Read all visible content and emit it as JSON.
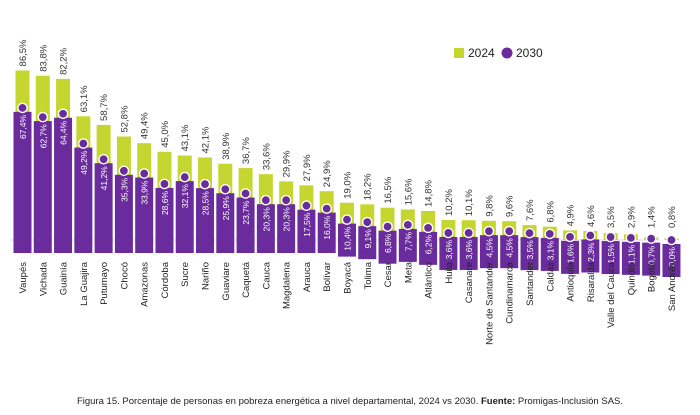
{
  "chart_data": {
    "type": "bar",
    "title": "",
    "xlabel": "",
    "ylabel": "",
    "ylim": [
      0,
      100
    ],
    "categories": [
      "Vaupés",
      "Vichada",
      "Guainía",
      "La Guajira",
      "Putumayo",
      "Chocó",
      "Amazonas",
      "Córdoba",
      "Sucre",
      "Nariño",
      "Guaviare",
      "Caquetá",
      "Cauca",
      "Magdalena",
      "Arauca",
      "Bolívar",
      "Boyacá",
      "Tolima",
      "Cesar",
      "Meta",
      "Atlántico",
      "Huila",
      "Casanare",
      "Norte de Santander",
      "Cundinamarca",
      "Santander",
      "Caldas",
      "Antioquia",
      "Risaralda",
      "Valle del Cauca",
      "Quindío",
      "Bogotá",
      "San Andrés"
    ],
    "series": [
      {
        "name": "2024",
        "color": "#c6d631",
        "values": [
          86.5,
          83.8,
          82.2,
          63.1,
          58.7,
          52.8,
          49.4,
          45.0,
          43.1,
          42.1,
          38.9,
          36.7,
          33.6,
          29.9,
          27.9,
          24.9,
          19.0,
          18.2,
          16.5,
          15.6,
          14.8,
          10.2,
          10.1,
          9.8,
          9.6,
          7.6,
          6.8,
          4.9,
          4.6,
          3.5,
          2.9,
          1.4,
          0.8
        ]
      },
      {
        "name": "2030",
        "color": "#6a2c9c",
        "values": [
          67.4,
          62.7,
          64.4,
          49.2,
          41.2,
          35.3,
          33.9,
          28.6,
          32.1,
          28.5,
          25.9,
          23.7,
          20.3,
          20.3,
          17.5,
          16.0,
          10.4,
          9.1,
          6.8,
          7.7,
          6.2,
          3.6,
          3.6,
          4.5,
          4.5,
          3.5,
          3.1,
          1.6,
          2.3,
          1.5,
          1.1,
          0.7,
          0.0
        ]
      }
    ],
    "labels_2024": [
      "86,5%",
      "83,8%",
      "82,2%",
      "63,1%",
      "58,7%",
      "52,8%",
      "49,4%",
      "45,0%",
      "43,1%",
      "42,1%",
      "38,9%",
      "36,7%",
      "33,6%",
      "29,9%",
      "27,9%",
      "24,9%",
      "19,0%",
      "18,2%",
      "16,5%",
      "15,6%",
      "14,8%",
      "10,2%",
      "10,1%",
      "9,8%",
      "9,6%",
      "7,6%",
      "6,8%",
      "4,9%",
      "4,6%",
      "3,5%",
      "2,9%",
      "1,4%",
      "0,8%"
    ],
    "labels_2030": [
      "67,4%",
      "62,7%",
      "64,4%",
      "49,2%",
      "41,2%",
      "35,3%",
      "33,9%",
      "28,6%",
      "32,1%",
      "28,5%",
      "25,9%",
      "23,7%",
      "20,3%",
      "20,3%",
      "17,5%",
      "16,0%",
      "10,4%",
      "9,1%",
      "6,8%",
      "7,7%",
      "6,2%",
      "3,6%",
      "3,6%",
      "4,5%",
      "4,5%",
      "3,5%",
      "3,1%",
      "1,6%",
      "2,3%",
      "1,5%",
      "1,1%",
      "0,7%",
      "0,0%"
    ],
    "legend": {
      "position": "top-right",
      "items": [
        "2024",
        "2030"
      ]
    }
  },
  "caption": {
    "text": "Figura 15. Porcentaje de personas en pobreza energética a nivel departamental, 2024 vs 2030. ",
    "source_label": "Fuente:",
    "source_text": " Promigas-Inclusión SAS."
  }
}
